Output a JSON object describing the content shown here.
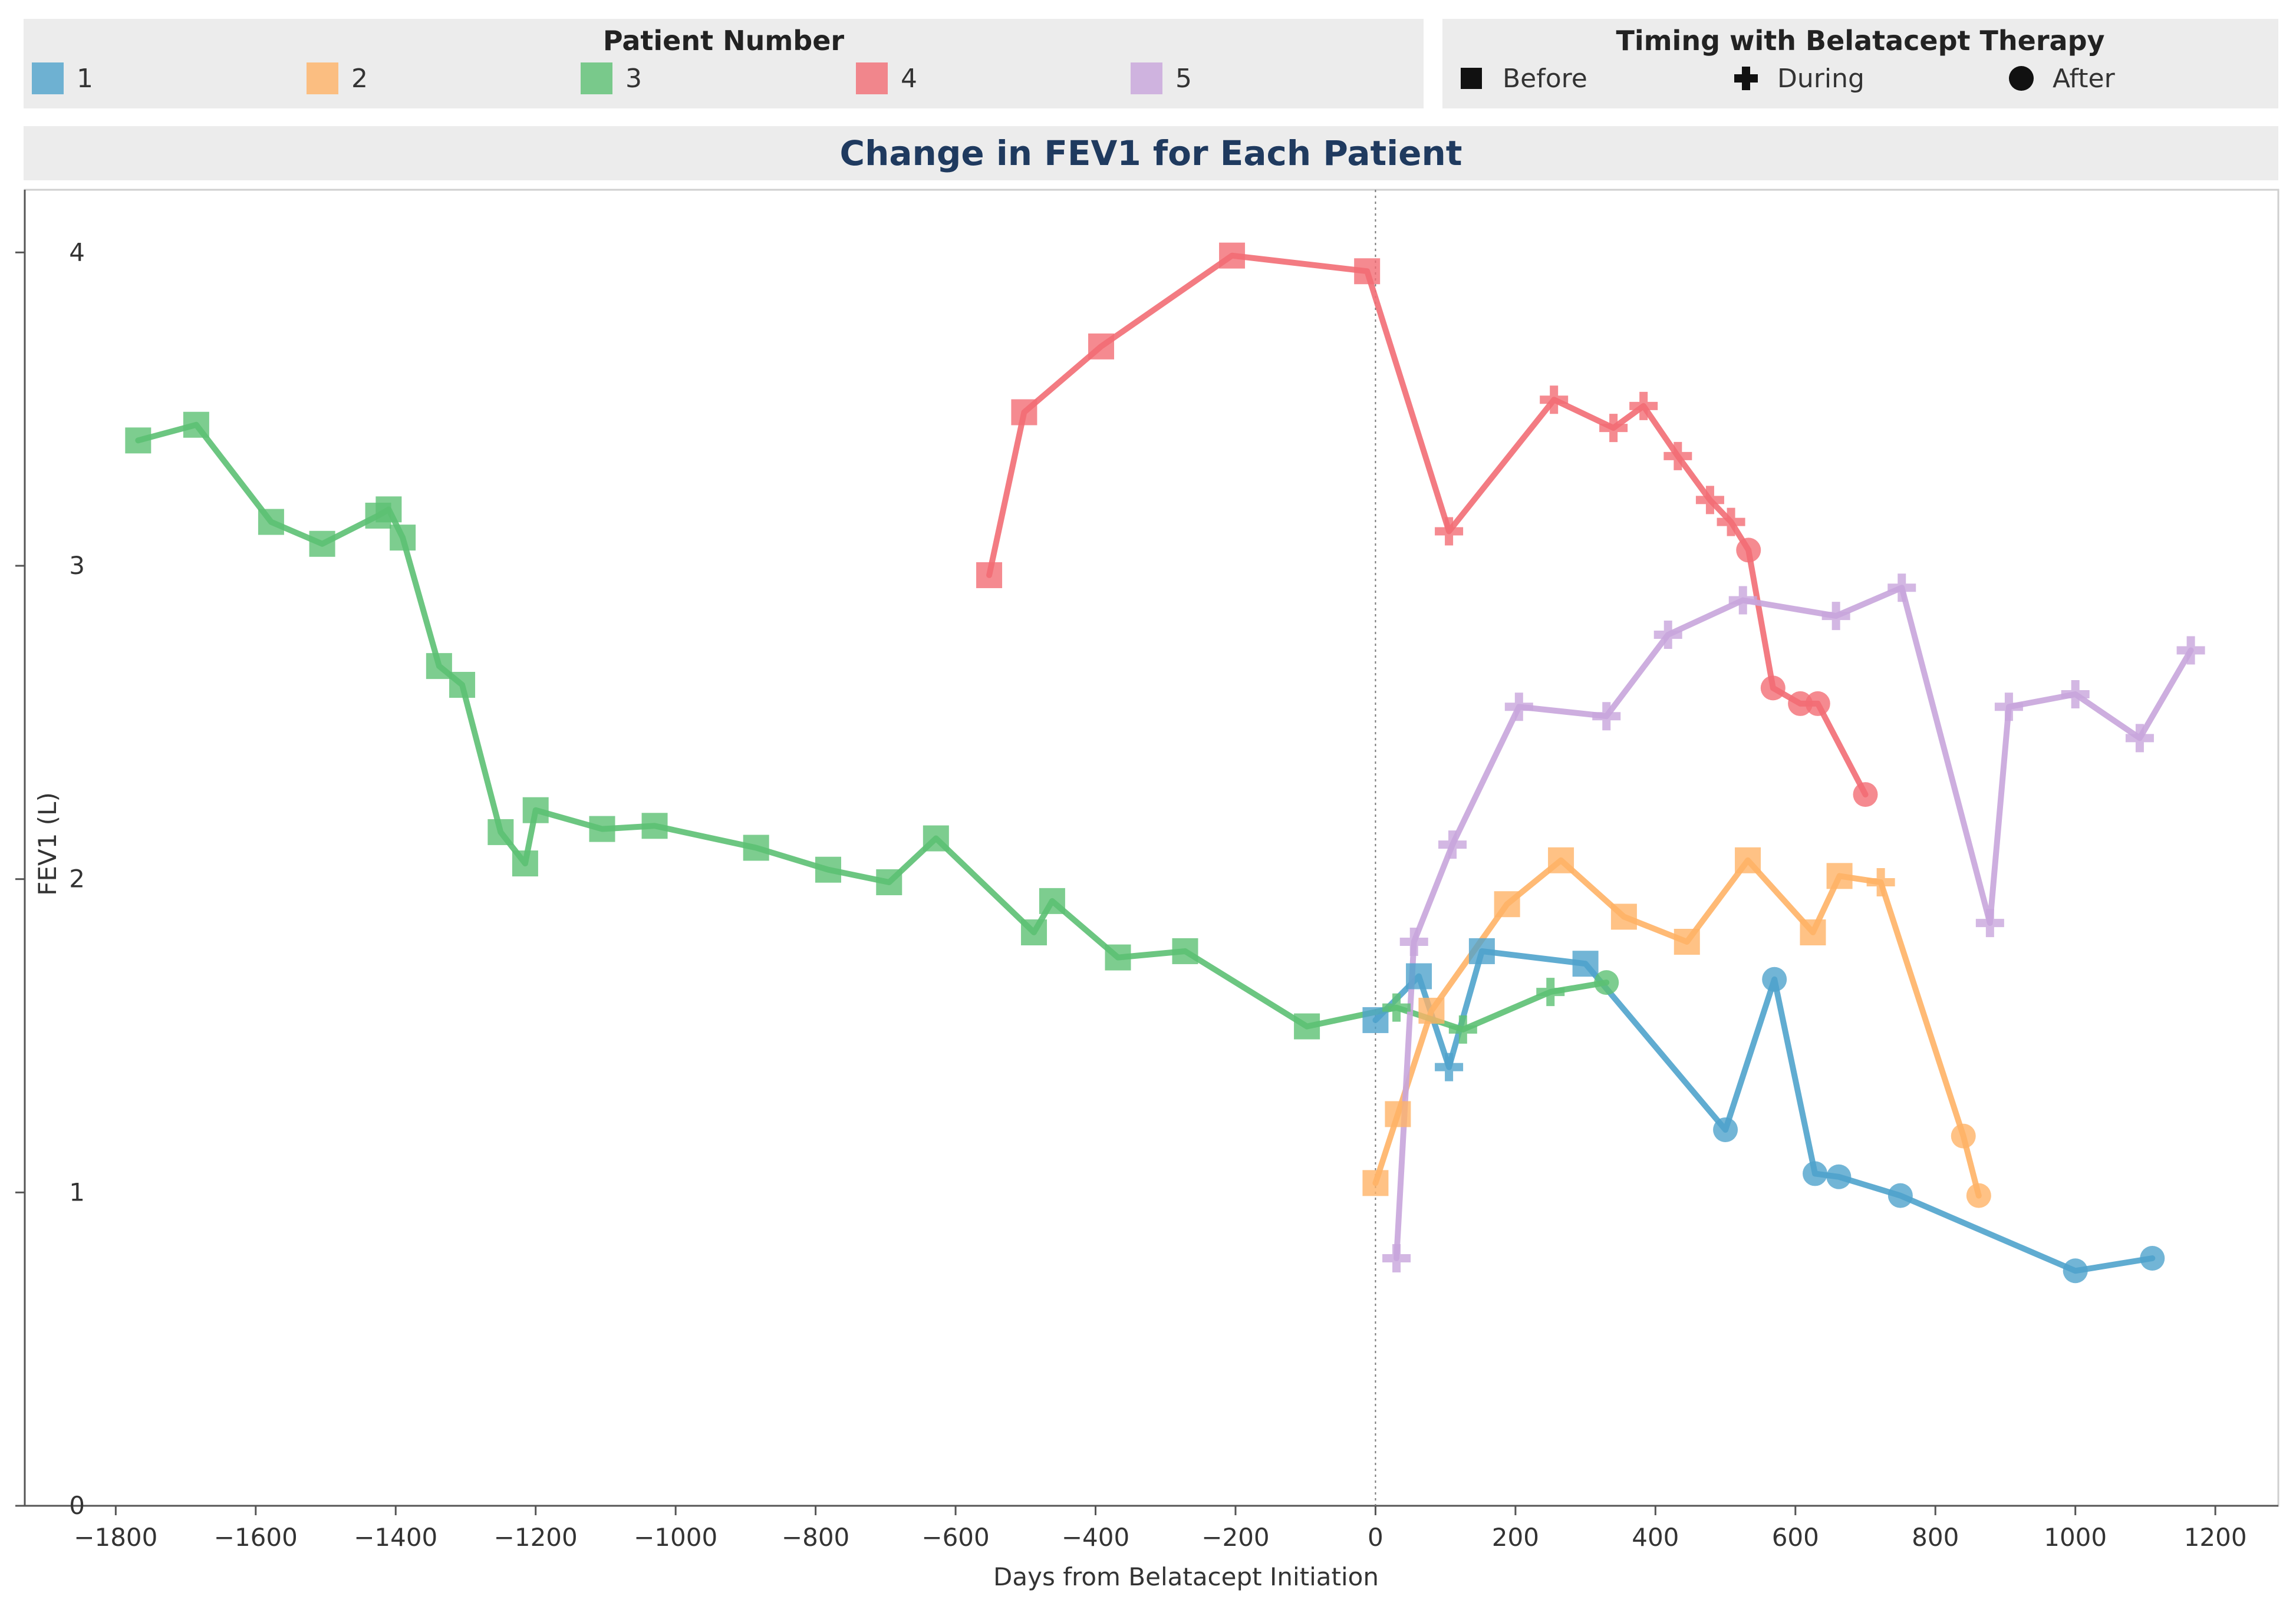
{
  "legend": {
    "patients_title": "Patient Number",
    "timing_title": "Timing with Belatacept Therapy",
    "patients": [
      {
        "label": "1",
        "color": "#4fa3cc"
      },
      {
        "label": "2",
        "color": "#ffb366"
      },
      {
        "label": "3",
        "color": "#5cc073"
      },
      {
        "label": "4",
        "color": "#f26d74"
      },
      {
        "label": "5",
        "color": "#c8a5dc"
      }
    ],
    "timing": [
      {
        "label": "Before",
        "icon": "square-icon"
      },
      {
        "label": "During",
        "icon": "plus-icon"
      },
      {
        "label": "After",
        "icon": "circle-icon"
      }
    ]
  },
  "chart_data": {
    "type": "line",
    "title": "Change in FEV1 for Each Patient",
    "xlabel": "Days from Belatacept Initiation",
    "ylabel": "FEV1 (L)",
    "xlim": [
      -1930,
      1290
    ],
    "ylim": [
      0,
      4.2
    ],
    "xticks": [
      -1800,
      -1600,
      -1400,
      -1200,
      -1000,
      -800,
      -600,
      -400,
      -200,
      0,
      200,
      400,
      600,
      800,
      1000,
      1200
    ],
    "yticks": [
      0,
      1,
      2,
      3,
      4
    ],
    "reference_line_x": 0,
    "series": [
      {
        "name": "1",
        "color": "#4fa3cc",
        "points": [
          {
            "x": 0,
            "y": 1.55,
            "phase": "Before"
          },
          {
            "x": 62,
            "y": 1.69,
            "phase": "Before"
          },
          {
            "x": 105,
            "y": 1.4,
            "phase": "During"
          },
          {
            "x": 152,
            "y": 1.77,
            "phase": "Before"
          },
          {
            "x": 300,
            "y": 1.73,
            "phase": "Before"
          },
          {
            "x": 500,
            "y": 1.2,
            "phase": "After"
          },
          {
            "x": 570,
            "y": 1.68,
            "phase": "After"
          },
          {
            "x": 628,
            "y": 1.06,
            "phase": "After"
          },
          {
            "x": 662,
            "y": 1.05,
            "phase": "After"
          },
          {
            "x": 750,
            "y": 0.99,
            "phase": "After"
          },
          {
            "x": 1000,
            "y": 0.75,
            "phase": "After"
          },
          {
            "x": 1110,
            "y": 0.79,
            "phase": "After"
          }
        ]
      },
      {
        "name": "2",
        "color": "#ffb366",
        "points": [
          {
            "x": 0,
            "y": 1.03,
            "phase": "Before"
          },
          {
            "x": 32,
            "y": 1.25,
            "phase": "Before"
          },
          {
            "x": 80,
            "y": 1.58,
            "phase": "Before"
          },
          {
            "x": 188,
            "y": 1.92,
            "phase": "Before"
          },
          {
            "x": 265,
            "y": 2.06,
            "phase": "Before"
          },
          {
            "x": 355,
            "y": 1.88,
            "phase": "Before"
          },
          {
            "x": 445,
            "y": 1.8,
            "phase": "Before"
          },
          {
            "x": 532,
            "y": 2.06,
            "phase": "Before"
          },
          {
            "x": 625,
            "y": 1.83,
            "phase": "Before"
          },
          {
            "x": 663,
            "y": 2.01,
            "phase": "Before"
          },
          {
            "x": 722,
            "y": 1.99,
            "phase": "During"
          },
          {
            "x": 840,
            "y": 1.18,
            "phase": "After"
          },
          {
            "x": 862,
            "y": 0.99,
            "phase": "After"
          }
        ]
      },
      {
        "name": "3",
        "color": "#5cc073",
        "points": [
          {
            "x": -1768,
            "y": 3.4,
            "phase": "Before"
          },
          {
            "x": -1685,
            "y": 3.45,
            "phase": "Before"
          },
          {
            "x": -1578,
            "y": 3.14,
            "phase": "Before"
          },
          {
            "x": -1505,
            "y": 3.07,
            "phase": "Before"
          },
          {
            "x": -1425,
            "y": 3.16,
            "phase": "Before"
          },
          {
            "x": -1410,
            "y": 3.18,
            "phase": "Before"
          },
          {
            "x": -1390,
            "y": 3.09,
            "phase": "Before"
          },
          {
            "x": -1338,
            "y": 2.68,
            "phase": "Before"
          },
          {
            "x": -1305,
            "y": 2.62,
            "phase": "Before"
          },
          {
            "x": -1250,
            "y": 2.15,
            "phase": "Before"
          },
          {
            "x": -1215,
            "y": 2.05,
            "phase": "Before"
          },
          {
            "x": -1200,
            "y": 2.22,
            "phase": "Before"
          },
          {
            "x": -1105,
            "y": 2.16,
            "phase": "Before"
          },
          {
            "x": -1030,
            "y": 2.17,
            "phase": "Before"
          },
          {
            "x": -885,
            "y": 2.1,
            "phase": "Before"
          },
          {
            "x": -782,
            "y": 2.03,
            "phase": "Before"
          },
          {
            "x": -695,
            "y": 1.99,
            "phase": "Before"
          },
          {
            "x": -628,
            "y": 2.13,
            "phase": "Before"
          },
          {
            "x": -488,
            "y": 1.83,
            "phase": "Before"
          },
          {
            "x": -462,
            "y": 1.93,
            "phase": "Before"
          },
          {
            "x": -368,
            "y": 1.75,
            "phase": "Before"
          },
          {
            "x": -272,
            "y": 1.77,
            "phase": "Before"
          },
          {
            "x": -98,
            "y": 1.53,
            "phase": "Before"
          },
          {
            "x": 30,
            "y": 1.59,
            "phase": "During"
          },
          {
            "x": 125,
            "y": 1.52,
            "phase": "During"
          },
          {
            "x": 250,
            "y": 1.64,
            "phase": "During"
          },
          {
            "x": 330,
            "y": 1.67,
            "phase": "After"
          }
        ]
      },
      {
        "name": "4",
        "color": "#f26d74",
        "points": [
          {
            "x": -552,
            "y": 2.97,
            "phase": "Before"
          },
          {
            "x": -502,
            "y": 3.49,
            "phase": "Before"
          },
          {
            "x": -392,
            "y": 3.7,
            "phase": "Before"
          },
          {
            "x": -205,
            "y": 3.99,
            "phase": "Before"
          },
          {
            "x": -12,
            "y": 3.94,
            "phase": "Before"
          },
          {
            "x": 105,
            "y": 3.11,
            "phase": "During"
          },
          {
            "x": 255,
            "y": 3.53,
            "phase": "During"
          },
          {
            "x": 340,
            "y": 3.44,
            "phase": "During"
          },
          {
            "x": 383,
            "y": 3.51,
            "phase": "During"
          },
          {
            "x": 432,
            "y": 3.35,
            "phase": "During"
          },
          {
            "x": 478,
            "y": 3.21,
            "phase": "During"
          },
          {
            "x": 508,
            "y": 3.14,
            "phase": "During"
          },
          {
            "x": 533,
            "y": 3.05,
            "phase": "After"
          },
          {
            "x": 568,
            "y": 2.61,
            "phase": "After"
          },
          {
            "x": 607,
            "y": 2.56,
            "phase": "After"
          },
          {
            "x": 632,
            "y": 2.56,
            "phase": "After"
          },
          {
            "x": 700,
            "y": 2.27,
            "phase": "After"
          }
        ]
      },
      {
        "name": "5",
        "color": "#c8a5dc",
        "points": [
          {
            "x": 30,
            "y": 0.79,
            "phase": "During"
          },
          {
            "x": 55,
            "y": 1.8,
            "phase": "During"
          },
          {
            "x": 110,
            "y": 2.11,
            "phase": "During"
          },
          {
            "x": 205,
            "y": 2.55,
            "phase": "During"
          },
          {
            "x": 330,
            "y": 2.52,
            "phase": "During"
          },
          {
            "x": 418,
            "y": 2.78,
            "phase": "During"
          },
          {
            "x": 525,
            "y": 2.89,
            "phase": "During"
          },
          {
            "x": 658,
            "y": 2.84,
            "phase": "During"
          },
          {
            "x": 752,
            "y": 2.93,
            "phase": "During"
          },
          {
            "x": 878,
            "y": 1.86,
            "phase": "During"
          },
          {
            "x": 905,
            "y": 2.55,
            "phase": "During"
          },
          {
            "x": 1000,
            "y": 2.59,
            "phase": "During"
          },
          {
            "x": 1092,
            "y": 2.45,
            "phase": "During"
          },
          {
            "x": 1165,
            "y": 2.73,
            "phase": "During"
          }
        ]
      }
    ]
  }
}
